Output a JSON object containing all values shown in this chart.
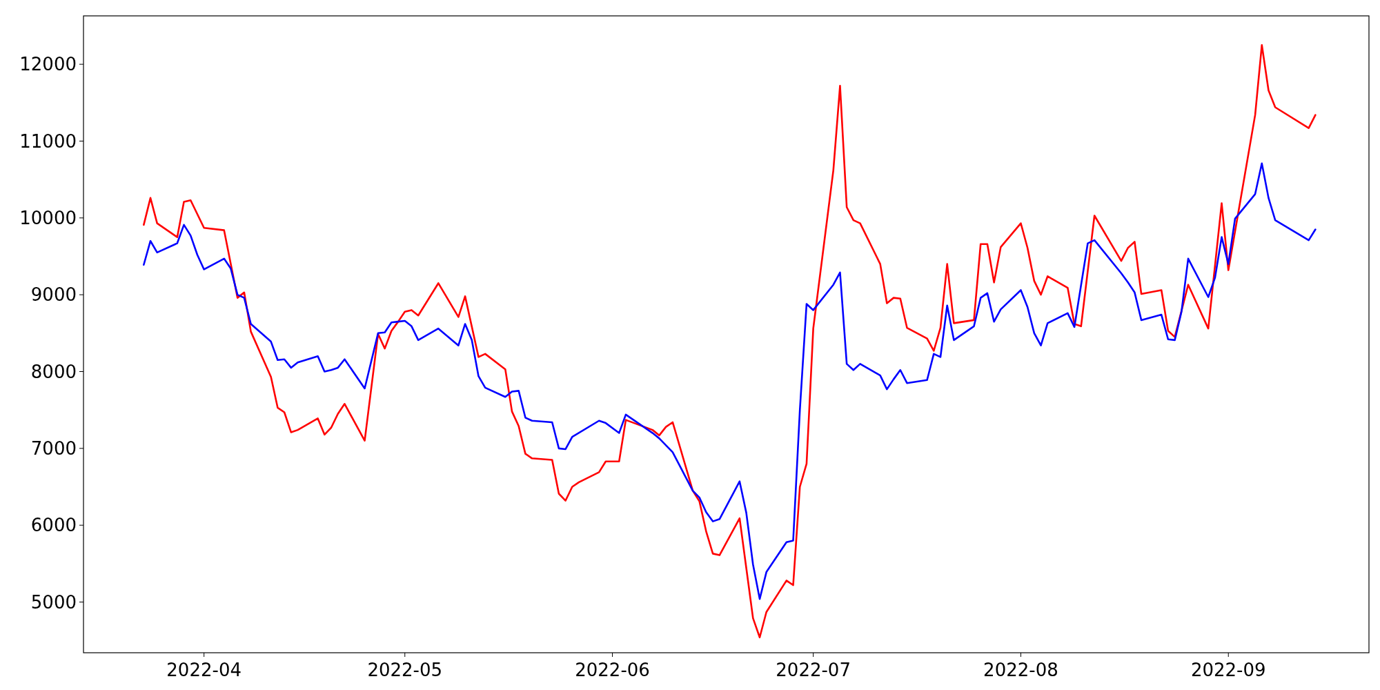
{
  "chart_data": {
    "type": "line",
    "xlim": [
      "2022-03-14",
      "2022-09-22"
    ],
    "ylim": [
      4340,
      12630
    ],
    "xticks": [
      {
        "value": "2022-04-01",
        "label": "2022-04"
      },
      {
        "value": "2022-05-01",
        "label": "2022-05"
      },
      {
        "value": "2022-06-01",
        "label": "2022-06"
      },
      {
        "value": "2022-07-01",
        "label": "2022-07"
      },
      {
        "value": "2022-08-01",
        "label": "2022-08"
      },
      {
        "value": "2022-09-01",
        "label": "2022-09"
      }
    ],
    "yticks": [
      5000,
      6000,
      7000,
      8000,
      9000,
      10000,
      11000,
      12000
    ],
    "line_style": "solid",
    "series": [
      {
        "color": "#ff0000",
        "x": [
          "2022-03-23",
          "2022-03-24",
          "2022-03-25",
          "2022-03-28",
          "2022-03-29",
          "2022-03-30",
          "2022-03-31",
          "2022-04-01",
          "2022-04-04",
          "2022-04-06",
          "2022-04-07",
          "2022-04-08",
          "2022-04-11",
          "2022-04-12",
          "2022-04-13",
          "2022-04-14",
          "2022-04-15",
          "2022-04-18",
          "2022-04-19",
          "2022-04-20",
          "2022-04-21",
          "2022-04-22",
          "2022-04-25",
          "2022-04-27",
          "2022-04-28",
          "2022-04-29",
          "2022-04-30",
          "2022-05-01",
          "2022-05-02",
          "2022-05-03",
          "2022-05-06",
          "2022-05-09",
          "2022-05-10",
          "2022-05-12",
          "2022-05-13",
          "2022-05-16",
          "2022-05-17",
          "2022-05-18",
          "2022-05-19",
          "2022-05-20",
          "2022-05-23",
          "2022-05-24",
          "2022-05-25",
          "2022-05-26",
          "2022-05-27",
          "2022-05-30",
          "2022-05-31",
          "2022-06-02",
          "2022-06-03",
          "2022-06-07",
          "2022-06-08",
          "2022-06-09",
          "2022-06-10",
          "2022-06-13",
          "2022-06-14",
          "2022-06-15",
          "2022-06-16",
          "2022-06-17",
          "2022-06-20",
          "2022-06-21",
          "2022-06-22",
          "2022-06-23",
          "2022-06-24",
          "2022-06-27",
          "2022-06-28",
          "2022-06-29",
          "2022-06-30",
          "2022-07-01",
          "2022-07-04",
          "2022-07-05",
          "2022-07-06",
          "2022-07-07",
          "2022-07-08",
          "2022-07-11",
          "2022-07-12",
          "2022-07-13",
          "2022-07-14",
          "2022-07-15",
          "2022-07-18",
          "2022-07-19",
          "2022-07-20",
          "2022-07-21",
          "2022-07-22",
          "2022-07-25",
          "2022-07-26",
          "2022-07-27",
          "2022-07-28",
          "2022-07-29",
          "2022-08-01",
          "2022-08-02",
          "2022-08-03",
          "2022-08-04",
          "2022-08-05",
          "2022-08-08",
          "2022-08-09",
          "2022-08-10",
          "2022-08-12",
          "2022-08-16",
          "2022-08-17",
          "2022-08-18",
          "2022-08-19",
          "2022-08-22",
          "2022-08-23",
          "2022-08-24",
          "2022-08-26",
          "2022-08-29",
          "2022-08-31",
          "2022-09-01",
          "2022-09-05",
          "2022-09-06",
          "2022-09-07",
          "2022-09-08",
          "2022-09-13",
          "2022-09-14"
        ],
        "values": [
          9910,
          10260,
          9930,
          9750,
          10210,
          10230,
          10050,
          9870,
          9840,
          8960,
          9030,
          8520,
          7930,
          7530,
          7470,
          7210,
          7240,
          7390,
          7180,
          7270,
          7450,
          7580,
          7100,
          8490,
          8300,
          8530,
          8650,
          8780,
          8800,
          8730,
          9150,
          8710,
          8980,
          8190,
          8230,
          8030,
          7480,
          7290,
          6930,
          6870,
          6850,
          6410,
          6320,
          6500,
          6560,
          6690,
          6830,
          6830,
          7370,
          7240,
          7170,
          7280,
          7340,
          6450,
          6310,
          5920,
          5630,
          5610,
          6090,
          5440,
          4790,
          4540,
          4870,
          5280,
          5220,
          6500,
          6800,
          8560,
          10620,
          11720,
          10140,
          9970,
          9930,
          9400,
          8890,
          8960,
          8950,
          8570,
          8430,
          8270,
          8570,
          9400,
          8630,
          8670,
          9660,
          9660,
          9160,
          9620,
          9930,
          9610,
          9180,
          9000,
          9240,
          9090,
          8620,
          8590,
          10030,
          9440,
          9610,
          9690,
          9010,
          9060,
          8530,
          8450,
          9130,
          8560,
          10190,
          9320,
          11340,
          12250,
          11660,
          11440,
          11170,
          11340
        ]
      },
      {
        "color": "#0000ff",
        "x": [
          "2022-03-23",
          "2022-03-24",
          "2022-03-25",
          "2022-03-28",
          "2022-03-29",
          "2022-03-30",
          "2022-03-31",
          "2022-04-01",
          "2022-04-04",
          "2022-04-05",
          "2022-04-06",
          "2022-04-07",
          "2022-04-08",
          "2022-04-11",
          "2022-04-12",
          "2022-04-13",
          "2022-04-14",
          "2022-04-15",
          "2022-04-18",
          "2022-04-19",
          "2022-04-20",
          "2022-04-21",
          "2022-04-22",
          "2022-04-25",
          "2022-04-27",
          "2022-04-28",
          "2022-04-29",
          "2022-04-30",
          "2022-05-01",
          "2022-05-02",
          "2022-05-03",
          "2022-05-06",
          "2022-05-09",
          "2022-05-10",
          "2022-05-11",
          "2022-05-12",
          "2022-05-13",
          "2022-05-16",
          "2022-05-17",
          "2022-05-18",
          "2022-05-19",
          "2022-05-20",
          "2022-05-23",
          "2022-05-24",
          "2022-05-25",
          "2022-05-26",
          "2022-05-30",
          "2022-05-31",
          "2022-06-02",
          "2022-06-03",
          "2022-06-07",
          "2022-06-08",
          "2022-06-10",
          "2022-06-13",
          "2022-06-14",
          "2022-06-15",
          "2022-06-16",
          "2022-06-17",
          "2022-06-20",
          "2022-06-21",
          "2022-06-22",
          "2022-06-23",
          "2022-06-24",
          "2022-06-27",
          "2022-06-28",
          "2022-06-29",
          "2022-06-30",
          "2022-07-01",
          "2022-07-04",
          "2022-07-05",
          "2022-07-06",
          "2022-07-07",
          "2022-07-08",
          "2022-07-11",
          "2022-07-12",
          "2022-07-13",
          "2022-07-14",
          "2022-07-15",
          "2022-07-18",
          "2022-07-19",
          "2022-07-20",
          "2022-07-21",
          "2022-07-22",
          "2022-07-25",
          "2022-07-26",
          "2022-07-27",
          "2022-07-28",
          "2022-07-29",
          "2022-08-01",
          "2022-08-02",
          "2022-08-03",
          "2022-08-04",
          "2022-08-05",
          "2022-08-08",
          "2022-08-09",
          "2022-08-11",
          "2022-08-12",
          "2022-08-16",
          "2022-08-17",
          "2022-08-18",
          "2022-08-19",
          "2022-08-22",
          "2022-08-23",
          "2022-08-24",
          "2022-08-25",
          "2022-08-26",
          "2022-08-29",
          "2022-08-30",
          "2022-08-31",
          "2022-09-01",
          "2022-09-02",
          "2022-09-05",
          "2022-09-06",
          "2022-09-07",
          "2022-09-08",
          "2022-09-13",
          "2022-09-14"
        ],
        "values": [
          9390,
          9700,
          9550,
          9670,
          9910,
          9770,
          9520,
          9330,
          9470,
          9340,
          9000,
          8960,
          8620,
          8390,
          8150,
          8160,
          8050,
          8120,
          8200,
          8000,
          8020,
          8050,
          8160,
          7780,
          8500,
          8510,
          8640,
          8650,
          8660,
          8590,
          8410,
          8560,
          8340,
          8620,
          8410,
          7940,
          7790,
          7670,
          7740,
          7750,
          7400,
          7360,
          7340,
          7000,
          6990,
          7150,
          7360,
          7330,
          7200,
          7440,
          7200,
          7130,
          6950,
          6450,
          6360,
          6170,
          6050,
          6080,
          6570,
          6160,
          5490,
          5040,
          5390,
          5780,
          5800,
          7500,
          8880,
          8800,
          9130,
          9290,
          8100,
          8020,
          8100,
          7950,
          7770,
          7900,
          8020,
          7850,
          7890,
          8230,
          8190,
          8860,
          8410,
          8590,
          8960,
          9020,
          8650,
          8810,
          9060,
          8840,
          8500,
          8340,
          8630,
          8760,
          8580,
          9670,
          9710,
          9280,
          9160,
          9030,
          8670,
          8740,
          8420,
          8410,
          8780,
          9470,
          8970,
          9220,
          9750,
          9400,
          9990,
          10310,
          10710,
          10260,
          9970,
          9710,
          9850
        ]
      }
    ]
  }
}
